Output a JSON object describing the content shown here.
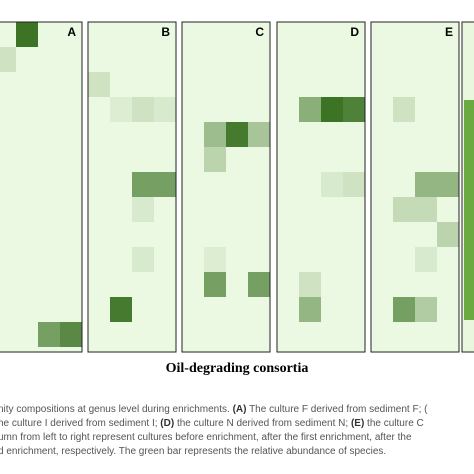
{
  "figure": {
    "panels": [
      {
        "label": "A",
        "cells": [
          {
            "row": 0,
            "col": 1,
            "level": 0.9
          },
          {
            "row": 1,
            "col": 0,
            "level": 0.15
          },
          {
            "row": 12,
            "col": 2,
            "level": 0.6
          },
          {
            "row": 12,
            "col": 3,
            "level": 0.75
          }
        ]
      },
      {
        "label": "B",
        "cells": [
          {
            "row": 2,
            "col": 0,
            "level": 0.15
          },
          {
            "row": 3,
            "col": 1,
            "level": 0.08
          },
          {
            "row": 3,
            "col": 2,
            "level": 0.15
          },
          {
            "row": 3,
            "col": 3,
            "level": 0.1
          },
          {
            "row": 6,
            "col": 2,
            "level": 0.6
          },
          {
            "row": 6,
            "col": 3,
            "level": 0.6
          },
          {
            "row": 7,
            "col": 2,
            "level": 0.1
          },
          {
            "row": 9,
            "col": 2,
            "level": 0.1
          },
          {
            "row": 11,
            "col": 1,
            "level": 0.85
          }
        ]
      },
      {
        "label": "C",
        "cells": [
          {
            "row": 4,
            "col": 1,
            "level": 0.4
          },
          {
            "row": 4,
            "col": 2,
            "level": 0.85
          },
          {
            "row": 4,
            "col": 3,
            "level": 0.35
          },
          {
            "row": 5,
            "col": 1,
            "level": 0.25
          },
          {
            "row": 9,
            "col": 1,
            "level": 0.08
          },
          {
            "row": 10,
            "col": 1,
            "level": 0.6
          },
          {
            "row": 10,
            "col": 3,
            "level": 0.6
          }
        ]
      },
      {
        "label": "D",
        "cells": [
          {
            "row": 3,
            "col": 1,
            "level": 0.5
          },
          {
            "row": 3,
            "col": 2,
            "level": 0.9
          },
          {
            "row": 3,
            "col": 3,
            "level": 0.8
          },
          {
            "row": 6,
            "col": 2,
            "level": 0.1
          },
          {
            "row": 6,
            "col": 3,
            "level": 0.15
          },
          {
            "row": 10,
            "col": 1,
            "level": 0.15
          },
          {
            "row": 11,
            "col": 1,
            "level": 0.45
          }
        ]
      },
      {
        "label": "E",
        "cells": [
          {
            "row": 3,
            "col": 1,
            "level": 0.15
          },
          {
            "row": 6,
            "col": 2,
            "level": 0.45
          },
          {
            "row": 6,
            "col": 3,
            "level": 0.45
          },
          {
            "row": 7,
            "col": 1,
            "level": 0.2
          },
          {
            "row": 7,
            "col": 2,
            "level": 0.2
          },
          {
            "row": 8,
            "col": 3,
            "level": 0.25
          },
          {
            "row": 9,
            "col": 2,
            "level": 0.1
          },
          {
            "row": 11,
            "col": 1,
            "level": 0.6
          },
          {
            "row": 11,
            "col": 2,
            "level": 0.3
          }
        ]
      }
    ],
    "title": "Oil-degrading consortia",
    "caption": [
      [
        {
          "text": "nity compositions at genus level during enrichments. ",
          "bold": false
        },
        {
          "text": "(A)",
          "bold": true
        },
        {
          "text": " The culture F derived from sediment F; (",
          "bold": false
        }
      ],
      [
        {
          "text": "he culture I derived from sediment I; ",
          "bold": false
        },
        {
          "text": "(D)",
          "bold": true
        },
        {
          "text": " the culture N derived from sediment N; ",
          "bold": false
        },
        {
          "text": "(E)",
          "bold": true
        },
        {
          "text": " the culture C",
          "bold": false
        }
      ],
      [
        {
          "text": "umn from left to right represent cultures before enrichment, after the first enrichment, after the",
          "bold": false
        }
      ],
      [
        {
          "text": "d enrichment, respectively. The green bar represents the relative abundance of species.",
          "bold": false
        }
      ]
    ]
  }
}
